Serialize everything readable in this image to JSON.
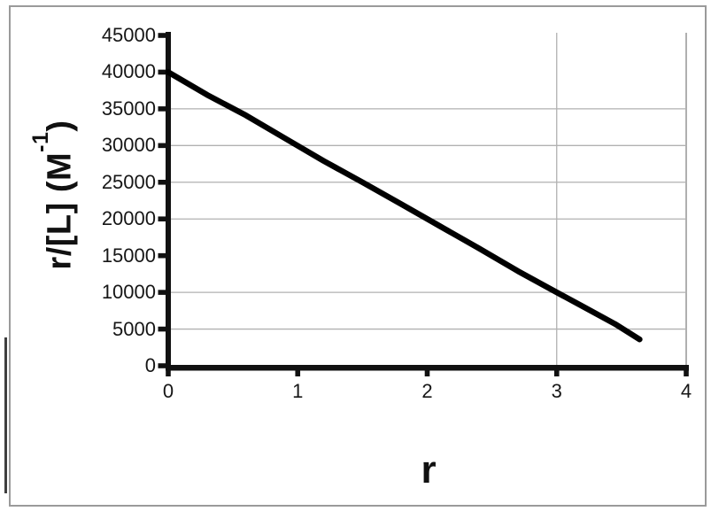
{
  "window": {
    "background_color": "#ffffff",
    "frame_border_color": "#9a9a9a"
  },
  "decor": {
    "left_edge_strip_color": "#3f3f3f"
  },
  "chart_data": {
    "type": "line",
    "title": "",
    "xlabel": "r",
    "ylabel": "r/[L] (M⁻¹)",
    "ylabel_parts": {
      "base": "r/[L] (M",
      "sup": "-1",
      "close": ")"
    },
    "xlim": [
      0,
      4
    ],
    "ylim": [
      0,
      45000
    ],
    "x_ticks": [
      0,
      1,
      2,
      3,
      4
    ],
    "y_ticks": [
      0,
      5000,
      10000,
      15000,
      20000,
      25000,
      30000,
      35000,
      40000,
      45000
    ],
    "gridlines": {
      "horizontal_values": [
        5000,
        10000,
        20000,
        25000,
        30000,
        35000
      ],
      "vertical_values": [
        3,
        4
      ],
      "color": "#b1b1b1",
      "right_border_color": "#a8a8a8"
    },
    "axis_color": "#111111",
    "text_color": "#161616",
    "legend": "none",
    "series": [
      {
        "color": "#000000",
        "x": [
          0,
          0.3,
          0.6,
          0.9,
          1.2,
          1.5,
          1.8,
          2.1,
          2.4,
          2.7,
          3.0,
          3.2,
          3.45,
          3.64
        ],
        "y": [
          40000,
          36900,
          34100,
          31000,
          27900,
          25000,
          22000,
          19000,
          16000,
          12900,
          10000,
          8100,
          5700,
          3600
        ]
      }
    ]
  }
}
